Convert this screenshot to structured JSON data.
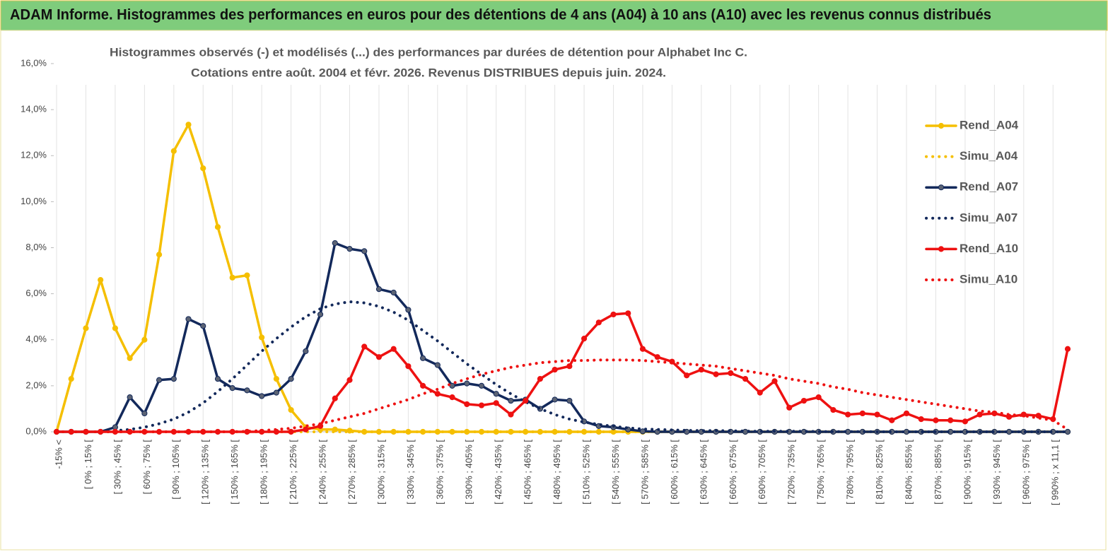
{
  "header": {
    "title": "ADAM Informe. Histogrammes des performances en euros pour des détentions de 4 ans (A04) à 10 ans (A10) avec les revenus connus distribués"
  },
  "chart_data": {
    "type": "line",
    "title": "Histogrammes observés (-) et modélisés (...) des performances par durées de détention pour Alphabet Inc C.",
    "subtitle": "Cotations entre août. 2004 et févr. 2026. Revenus DISTRIBUES depuis juin. 2024.",
    "categories": [
      "-15% <",
      null,
      "[ 0% ; 15% [",
      null,
      "[ 30% ; 45% [",
      null,
      "[ 60% ; 75% [",
      null,
      "[ 90% ; 105% [",
      null,
      "[ 120% ; 135% [",
      null,
      "[ 150% ; 165% [",
      null,
      "[ 180% ; 195% [",
      null,
      "[ 210% ; 225% [",
      null,
      "[ 240% ; 255% [",
      null,
      "[ 270% ; 285% [",
      null,
      "[ 300% ; 315% [",
      null,
      "[ 330% ; 345% [",
      null,
      "[ 360% ; 375% [",
      null,
      "[ 390% ; 405% [",
      null,
      "[ 420% ; 435% [",
      null,
      "[ 450% ; 465% [",
      null,
      "[ 480% ; 495% [",
      null,
      "[ 510% ; 525% [",
      null,
      "[ 540% ; 555% [",
      null,
      "[ 570% ; 585% [",
      null,
      "[ 600% ; 615% [",
      null,
      "[ 630% ; 645% [",
      null,
      "[ 660% ; 675% [",
      null,
      "[ 690% ; 705% [",
      null,
      "[ 720% ; 735% [",
      null,
      "[ 750% ; 765% [",
      null,
      "[ 780% ; 795% [",
      null,
      "[ 810% ; 825% [",
      null,
      "[ 840% ; 855% [",
      null,
      "[ 870% ; 885% [",
      null,
      "[ 900% ; 915% [",
      null,
      "[ 930% ; 945% [",
      null,
      "[ 960% ; 975% [",
      null,
      "[ 990% ; x 11,1 [",
      null
    ],
    "series": [
      {
        "name": "Rend_A04",
        "color": "#f5bf00",
        "style": "solid",
        "markers": true,
        "values": [
          0,
          2.3,
          4.5,
          6.6,
          4.5,
          3.2,
          4.0,
          7.7,
          12.2,
          13.35,
          11.45,
          8.9,
          6.7,
          6.8,
          4.1,
          2.3,
          0.95,
          0.2,
          0.1,
          0.1,
          0.05,
          0,
          0,
          0,
          0,
          0,
          0,
          0,
          0,
          0,
          0,
          0,
          0,
          0,
          0,
          0,
          0,
          0,
          0,
          0,
          0,
          0,
          0,
          0,
          0,
          0,
          0,
          0,
          0,
          0,
          0,
          0,
          0,
          0,
          0,
          0,
          0,
          0,
          0,
          0,
          0,
          0,
          0,
          0,
          0,
          0,
          0,
          0,
          0,
          0
        ]
      },
      {
        "name": "Simu_A04",
        "color": "#f5bf00",
        "style": "dotted",
        "markers": false,
        "values": [
          0,
          0,
          0,
          0,
          0,
          0,
          0,
          0,
          0,
          0,
          0,
          0,
          0,
          0,
          0,
          0,
          0,
          0,
          0,
          0,
          0,
          0,
          0,
          0,
          0,
          0,
          0,
          0,
          0,
          0,
          0,
          0,
          0,
          0,
          0,
          0,
          0,
          0,
          0,
          0,
          0,
          0,
          0,
          0,
          0,
          0,
          0,
          0,
          0,
          0,
          0,
          0,
          0,
          0,
          0,
          0,
          0,
          0,
          0,
          0,
          0,
          0,
          0,
          0,
          0,
          0,
          0,
          0,
          0,
          0
        ]
      },
      {
        "name": "Rend_A07",
        "color": "#13295b",
        "style": "solid",
        "markers": true,
        "values": [
          0,
          0,
          0,
          0,
          0.2,
          1.5,
          0.8,
          2.25,
          2.3,
          4.9,
          4.6,
          2.3,
          1.9,
          1.8,
          1.55,
          1.7,
          2.3,
          3.5,
          5.1,
          8.2,
          7.95,
          7.85,
          6.2,
          6.05,
          5.3,
          3.2,
          2.9,
          2.0,
          2.1,
          2.0,
          1.65,
          1.35,
          1.4,
          1.0,
          1.4,
          1.35,
          0.45,
          0.25,
          0.2,
          0.1,
          0.02,
          0,
          0,
          0,
          0,
          0,
          0,
          0,
          0,
          0,
          0,
          0,
          0,
          0,
          0,
          0,
          0,
          0,
          0,
          0,
          0,
          0,
          0,
          0,
          0,
          0,
          0,
          0,
          0,
          0
        ]
      },
      {
        "name": "Simu_A07",
        "color": "#13295b",
        "style": "dotted",
        "markers": false,
        "values": [
          0,
          0,
          0,
          0,
          0.05,
          0.1,
          0.2,
          0.35,
          0.55,
          0.85,
          1.25,
          1.75,
          2.3,
          2.9,
          3.5,
          4.05,
          4.55,
          5.0,
          5.35,
          5.55,
          5.65,
          5.6,
          5.45,
          5.2,
          4.85,
          4.4,
          3.95,
          3.45,
          2.95,
          2.5,
          2.05,
          1.65,
          1.3,
          1.0,
          0.75,
          0.55,
          0.42,
          0.32,
          0.24,
          0.17,
          0.12,
          0.1,
          0.08,
          0.06,
          0.05,
          0.05,
          0.04,
          0.03,
          0.02,
          0.02,
          0.02,
          0.02,
          0.01,
          0.01,
          0.01,
          0.01,
          0,
          0,
          0,
          0,
          0,
          0,
          0,
          0,
          0,
          0,
          0,
          0,
          0,
          0
        ]
      },
      {
        "name": "Rend_A10",
        "color": "#ee1111",
        "style": "solid",
        "markers": true,
        "values": [
          0,
          0,
          0,
          0,
          0,
          0,
          0,
          0,
          0,
          0,
          0,
          0,
          0,
          0,
          0,
          0,
          0,
          0.1,
          0.25,
          1.45,
          2.25,
          3.7,
          3.25,
          3.6,
          2.85,
          2.0,
          1.65,
          1.5,
          1.2,
          1.15,
          1.25,
          0.75,
          1.35,
          2.3,
          2.7,
          2.85,
          4.05,
          4.75,
          5.1,
          5.15,
          3.6,
          3.25,
          3.05,
          2.45,
          2.7,
          2.5,
          2.55,
          2.3,
          1.7,
          2.2,
          1.05,
          1.35,
          1.5,
          0.95,
          0.75,
          0.8,
          0.75,
          0.5,
          0.8,
          0.55,
          0.5,
          0.5,
          0.45,
          0.75,
          0.8,
          0.65,
          0.75,
          0.7,
          0.55,
          3.6
        ]
      },
      {
        "name": "Simu_A10",
        "color": "#ee1111",
        "style": "dotted",
        "markers": false,
        "values": [
          0,
          0,
          0,
          0,
          0,
          0,
          0,
          0,
          0,
          0,
          0,
          0,
          0,
          0.02,
          0.05,
          0.1,
          0.15,
          0.25,
          0.35,
          0.5,
          0.65,
          0.8,
          1.0,
          1.2,
          1.4,
          1.65,
          1.85,
          2.1,
          2.3,
          2.5,
          2.65,
          2.8,
          2.9,
          3.0,
          3.05,
          3.1,
          3.1,
          3.12,
          3.12,
          3.12,
          3.1,
          3.05,
          3.0,
          2.95,
          2.9,
          2.85,
          2.75,
          2.65,
          2.55,
          2.45,
          2.3,
          2.2,
          2.1,
          1.95,
          1.85,
          1.7,
          1.6,
          1.5,
          1.4,
          1.3,
          1.2,
          1.1,
          1.0,
          0.9,
          0.85,
          0.75,
          0.7,
          0.6,
          0.5,
          0.1
        ]
      }
    ],
    "ylim": [
      0,
      16
    ],
    "yticks": [
      {
        "value": 0,
        "label": "0,0%"
      },
      {
        "value": 2,
        "label": "2,0%"
      },
      {
        "value": 4,
        "label": "4,0%"
      },
      {
        "value": 6,
        "label": "6,0%"
      },
      {
        "value": 8,
        "label": "8,0%"
      },
      {
        "value": 10,
        "label": "10,0%"
      },
      {
        "value": 12,
        "label": "12,0%"
      },
      {
        "value": 14,
        "label": "14,0%"
      },
      {
        "value": 16,
        "label": "16,0%"
      }
    ],
    "xgrid": true,
    "legend": "right"
  }
}
